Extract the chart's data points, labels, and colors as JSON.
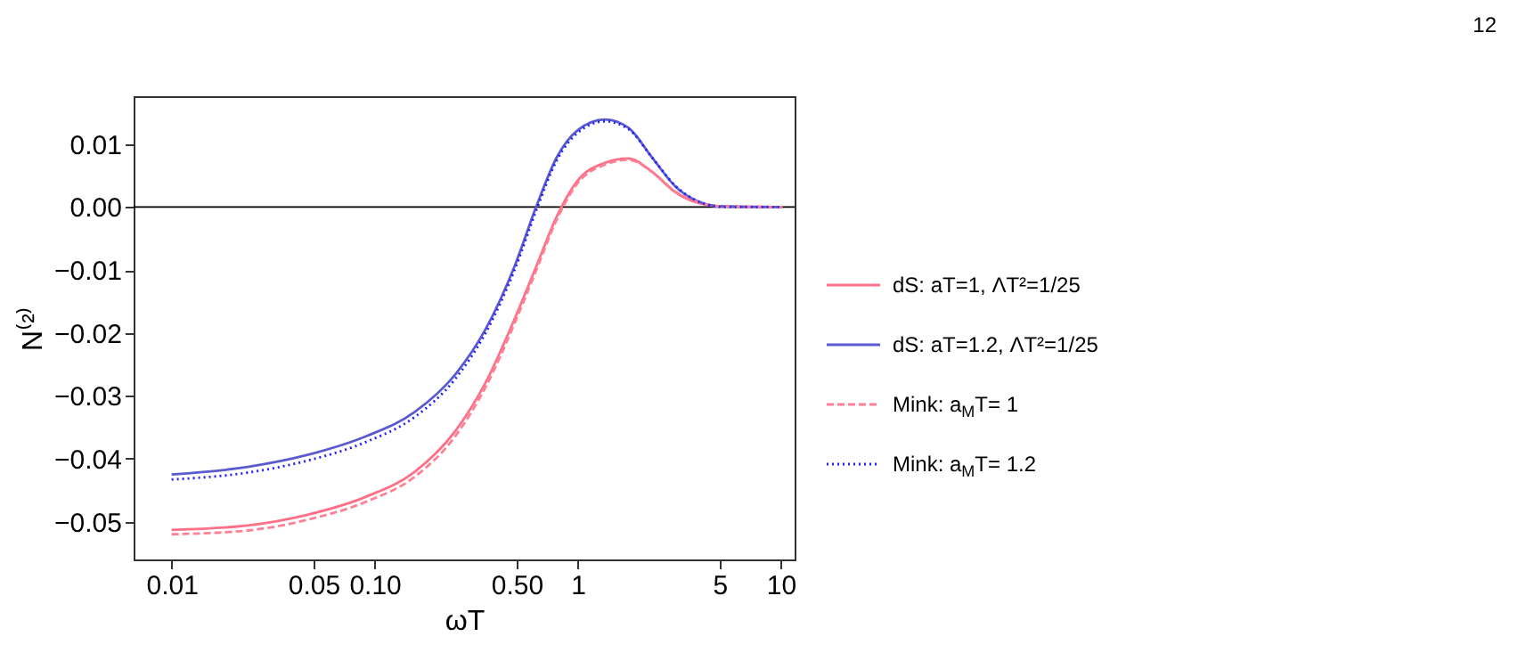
{
  "chart_data": {
    "type": "line",
    "xlabel": "ωT",
    "ylabel": "N⁽²⁾",
    "log": "x",
    "xlim": [
      0.0065,
      11.7
    ],
    "xticks": [
      {
        "value": 0.01,
        "label": "0.01"
      },
      {
        "value": 0.05,
        "label": "0.05"
      },
      {
        "value": 0.1,
        "label": "0.10"
      },
      {
        "value": 0.5,
        "label": "0.50"
      },
      1,
      5,
      10
    ],
    "ylim": [
      -0.056,
      0.0176
    ],
    "yticks": [
      {
        "value": -0.05,
        "label": "−0.05"
      },
      {
        "value": -0.04,
        "label": "−0.04"
      },
      {
        "value": -0.03,
        "label": "−0.03"
      },
      {
        "value": -0.02,
        "label": "−0.02"
      },
      {
        "value": -0.01,
        "label": "−0.01"
      },
      {
        "value": 0,
        "label": "0.00"
      },
      {
        "value": 0.01,
        "label": "0.01"
      }
    ],
    "x": [
      0.01,
      0.0237,
      0.0466,
      0.0912,
      0.157,
      0.251,
      0.352,
      0.493,
      0.624,
      0.789,
      1.0,
      1.357,
      1.775,
      2.32,
      3.04,
      3.98,
      5.2,
      10.2
    ],
    "series": [
      {
        "name": "dS: aT=1, ΛT²=1/25",
        "color": "#ff6f87",
        "line_style": "solid",
        "values": [
          -0.0513,
          -0.0506,
          -0.0489,
          -0.046,
          -0.0421,
          -0.0355,
          -0.0279,
          -0.0175,
          -0.0095,
          -0.0015,
          0.0042,
          0.007,
          0.0077,
          0.0056,
          0.0023,
          0.0006,
          0.0001,
          0.0
        ]
      },
      {
        "name": "dS: aT=1.2, ΛT²=1/25",
        "color": "#5b5bd0",
        "line_style": "solid",
        "values": [
          -0.0425,
          -0.0413,
          -0.0394,
          -0.0364,
          -0.0326,
          -0.0265,
          -0.0194,
          -0.0091,
          0.0,
          0.0079,
          0.0122,
          0.0139,
          0.0126,
          0.0079,
          0.0032,
          0.0008,
          0.0001,
          0.0
        ]
      },
      {
        "name": "Mink: a$_{M}$T= 1",
        "color": "#ff8095",
        "line_style": "dashed",
        "values": [
          -0.052,
          -0.0514,
          -0.0497,
          -0.0468,
          -0.0429,
          -0.0363,
          -0.0286,
          -0.0182,
          -0.0101,
          -0.002,
          0.0038,
          0.0067,
          0.0075,
          0.0056,
          0.0024,
          0.0007,
          0.0001,
          0.0
        ]
      },
      {
        "name": "Mink: a$_{M}$T= 1.2",
        "color": "#2020ff",
        "line_style": "dotted",
        "values": [
          -0.0433,
          -0.0422,
          -0.0403,
          -0.0373,
          -0.0334,
          -0.0272,
          -0.02,
          -0.0097,
          -0.0006,
          0.0074,
          0.0118,
          0.0136,
          0.0124,
          0.0079,
          0.0033,
          0.0008,
          0.0,
          0.0
        ]
      }
    ],
    "ref_lines": [
      {
        "axis": "y",
        "value": 0,
        "color": "#000000"
      }
    ],
    "legend": "right",
    "grid": false,
    "annotations": [
      "12"
    ]
  }
}
